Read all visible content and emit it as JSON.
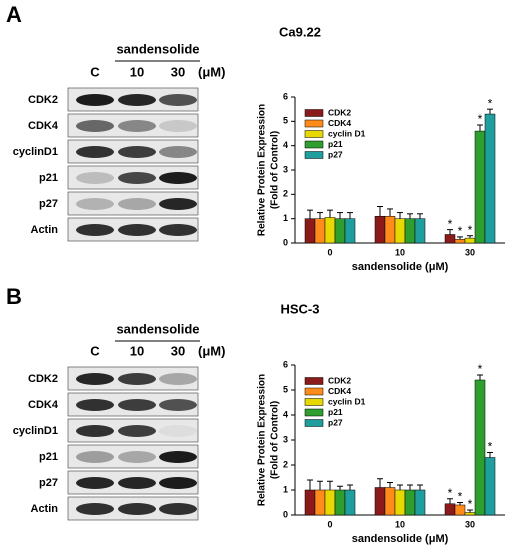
{
  "panels": [
    {
      "label": "A",
      "treatment": "sandensolide",
      "lanes": [
        "C",
        "10",
        "30"
      ],
      "unit": "(μM)",
      "proteins": [
        "CDK2",
        "CDK4",
        "cyclinD1",
        "p21",
        "p27",
        "Actin"
      ]
    },
    {
      "label": "B",
      "treatment": "sandensolide",
      "lanes": [
        "C",
        "10",
        "30"
      ],
      "unit": "(μM)",
      "proteins": [
        "CDK2",
        "CDK4",
        "cyclinD1",
        "p21",
        "p27",
        "Actin"
      ]
    }
  ],
  "chart_data": [
    {
      "type": "bar",
      "title": "Ca9.22",
      "categories": [
        "0",
        "10",
        "30"
      ],
      "xlabel": "sandensolide (μM)",
      "ylabel": [
        "Relative Protein Expression",
        "(Fold of Control)"
      ],
      "ylim": [
        0,
        6
      ],
      "yticks": [
        0,
        1,
        2,
        3,
        4,
        5,
        6
      ],
      "legend": "upper left",
      "series": [
        {
          "name": "CDK2",
          "color": "#8b1a1a",
          "values": [
            1.0,
            1.1,
            0.35
          ],
          "errors": [
            0.35,
            0.4,
            0.2
          ],
          "annotations": [
            null,
            null,
            "*"
          ]
        },
        {
          "name": "CDK4",
          "color": "#ff8c1a",
          "values": [
            1.0,
            1.1,
            0.15
          ],
          "errors": [
            0.25,
            0.3,
            0.1
          ],
          "annotations": [
            null,
            null,
            "*"
          ]
        },
        {
          "name": "cyclin D1",
          "color": "#e6d800",
          "values": [
            1.05,
            1.0,
            0.2
          ],
          "errors": [
            0.3,
            0.25,
            0.1
          ],
          "annotations": [
            null,
            null,
            "*"
          ]
        },
        {
          "name": "p21",
          "color": "#2e9e2e",
          "values": [
            1.0,
            1.0,
            4.6
          ],
          "errors": [
            0.25,
            0.2,
            0.25
          ],
          "annotations": [
            null,
            null,
            "*"
          ]
        },
        {
          "name": "p27",
          "color": "#1f9e9e",
          "values": [
            1.0,
            1.0,
            5.3
          ],
          "errors": [
            0.25,
            0.2,
            0.2
          ],
          "annotations": [
            null,
            null,
            "*"
          ]
        }
      ]
    },
    {
      "type": "bar",
      "title": "HSC-3",
      "categories": [
        "0",
        "10",
        "30"
      ],
      "xlabel": "sandensolide (μM)",
      "ylabel": [
        "Relative Protein Expression",
        "(Fold of Control)"
      ],
      "ylim": [
        0,
        6
      ],
      "yticks": [
        0,
        1,
        2,
        3,
        4,
        5,
        6
      ],
      "legend": "upper left",
      "series": [
        {
          "name": "CDK2",
          "color": "#8b1a1a",
          "values": [
            1.0,
            1.1,
            0.45
          ],
          "errors": [
            0.4,
            0.35,
            0.2
          ],
          "annotations": [
            null,
            null,
            "*"
          ]
        },
        {
          "name": "CDK4",
          "color": "#ff8c1a",
          "values": [
            1.0,
            1.1,
            0.4
          ],
          "errors": [
            0.35,
            0.2,
            0.1
          ],
          "annotations": [
            null,
            null,
            "*"
          ]
        },
        {
          "name": "cyclin D1",
          "color": "#e6d800",
          "values": [
            1.0,
            1.0,
            0.1
          ],
          "errors": [
            0.35,
            0.2,
            0.1
          ],
          "annotations": [
            null,
            null,
            "*"
          ]
        },
        {
          "name": "p21",
          "color": "#2e9e2e",
          "values": [
            1.0,
            1.0,
            5.4
          ],
          "errors": [
            0.15,
            0.2,
            0.2
          ],
          "annotations": [
            null,
            null,
            "*"
          ]
        },
        {
          "name": "p27",
          "color": "#1f9e9e",
          "values": [
            1.0,
            1.0,
            2.3
          ],
          "errors": [
            0.2,
            0.2,
            0.2
          ],
          "annotations": [
            null,
            null,
            "*"
          ]
        }
      ]
    }
  ]
}
